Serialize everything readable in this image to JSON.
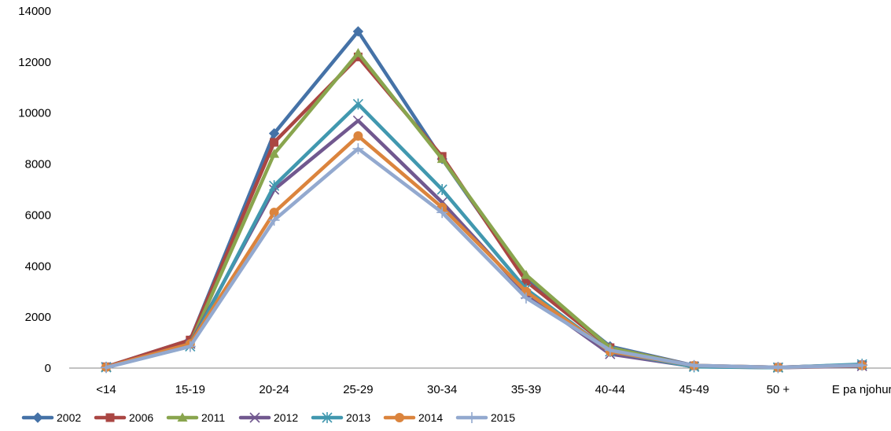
{
  "chart_data": {
    "type": "line",
    "title": "",
    "xlabel": "",
    "ylabel": "",
    "categories": [
      "<14",
      "15-19",
      "20-24",
      "25-29",
      "30-34",
      "35-39",
      "40-44",
      "45-49",
      "50 +",
      "E pa njohur"
    ],
    "ylim": [
      0,
      14000
    ],
    "yticks": [
      0,
      2000,
      4000,
      6000,
      8000,
      10000,
      12000,
      14000
    ],
    "ytick_labels": [
      "0",
      "2000",
      "4000",
      "6000",
      "8000",
      "10000",
      "12000",
      "14000"
    ],
    "grid": false,
    "legend_position": "bottom",
    "series": [
      {
        "name": "2002",
        "color": "#4572A7",
        "marker": "diamond",
        "values": [
          50,
          1100,
          9200,
          13200,
          8200,
          3500,
          850,
          100,
          30,
          130
        ]
      },
      {
        "name": "2006",
        "color": "#AA4643",
        "marker": "square",
        "values": [
          50,
          1100,
          8850,
          12200,
          8300,
          3400,
          800,
          90,
          30,
          130
        ]
      },
      {
        "name": "2011",
        "color": "#89A54E",
        "marker": "triangle",
        "values": [
          30,
          950,
          8400,
          12350,
          8200,
          3650,
          800,
          80,
          20,
          130
        ]
      },
      {
        "name": "2012",
        "color": "#71588F",
        "marker": "x",
        "values": [
          40,
          950,
          7000,
          9700,
          6500,
          2900,
          550,
          60,
          20,
          80
        ]
      },
      {
        "name": "2013",
        "color": "#4198AF",
        "marker": "asterisk",
        "values": [
          30,
          850,
          7150,
          10350,
          7000,
          3100,
          650,
          50,
          20,
          150
        ]
      },
      {
        "name": "2014",
        "color": "#DB843D",
        "marker": "circle",
        "values": [
          40,
          950,
          6100,
          9100,
          6300,
          3000,
          650,
          100,
          30,
          100
        ]
      },
      {
        "name": "2015",
        "color": "#93A9CF",
        "marker": "plus",
        "values": [
          20,
          850,
          5800,
          8600,
          6100,
          2750,
          700,
          100,
          30,
          110
        ]
      }
    ]
  }
}
